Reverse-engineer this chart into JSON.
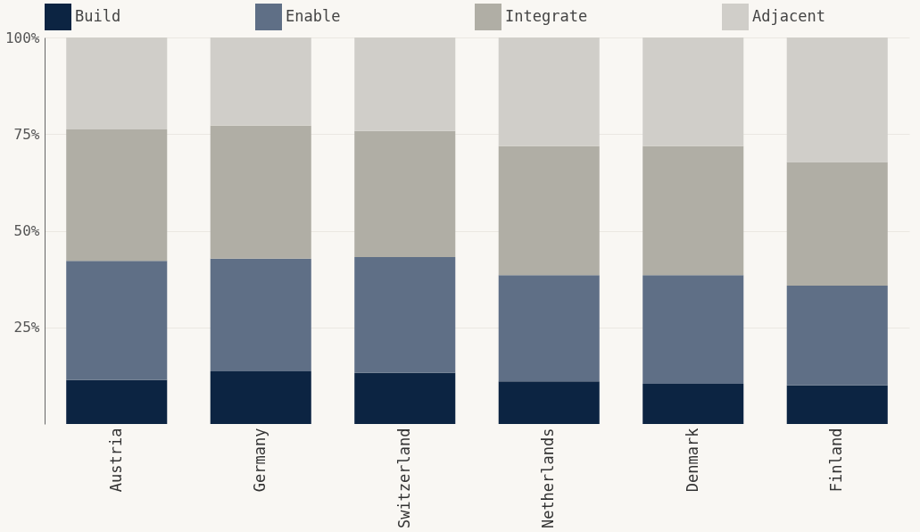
{
  "chart_data": {
    "type": "bar",
    "stacked": true,
    "categories": [
      "Austria",
      "Germany",
      "Switzerland",
      "Netherlands",
      "Denmark",
      "Finland"
    ],
    "series": [
      {
        "name": "Build",
        "color": "#0c2442",
        "values": [
          11.4,
          13.6,
          13.2,
          11.0,
          10.4,
          10.0
        ]
      },
      {
        "name": "Enable",
        "color": "#5f6f86",
        "values": [
          30.8,
          29.2,
          30.0,
          27.5,
          28.1,
          25.8
        ]
      },
      {
        "name": "Integrate",
        "color": "#b0aea5",
        "values": [
          34.0,
          34.4,
          32.6,
          33.4,
          33.4,
          32.0
        ]
      },
      {
        "name": "Adjacent",
        "color": "#d0cec9",
        "values": [
          23.8,
          22.8,
          24.2,
          28.1,
          28.1,
          32.2
        ]
      }
    ],
    "ylim": [
      0,
      100
    ],
    "yticks": [
      {
        "value": 25,
        "label": "25%"
      },
      {
        "value": 50,
        "label": "50%"
      },
      {
        "value": 75,
        "label": "75%"
      },
      {
        "value": 100,
        "label": "100%"
      }
    ],
    "grid": "y",
    "legend": "top"
  }
}
